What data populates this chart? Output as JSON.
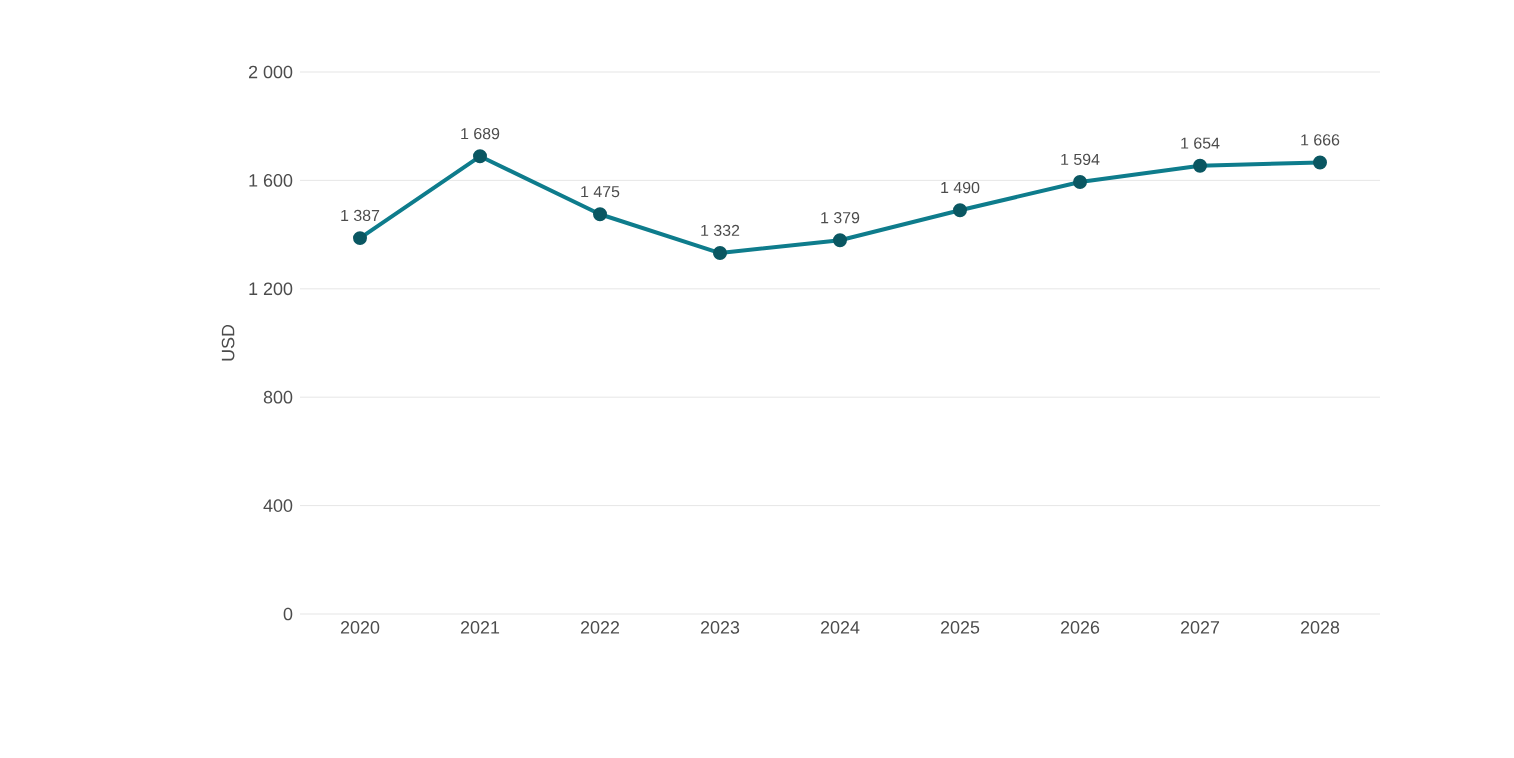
{
  "chart_data": {
    "type": "line",
    "ylabel": "USD",
    "categories": [
      "2020",
      "2021",
      "2022",
      "2023",
      "2024",
      "2025",
      "2026",
      "2027",
      "2028"
    ],
    "values": [
      1387,
      1689,
      1475,
      1332,
      1379,
      1490,
      1594,
      1654,
      1666
    ],
    "value_labels": [
      "1 387",
      "1 689",
      "1 475",
      "1 332",
      "1 379",
      "1 490",
      "1 594",
      "1 654",
      "1 666"
    ],
    "color": "#0e7c8c",
    "ylim": [
      0,
      2000
    ],
    "yticks": [
      {
        "value": 0,
        "label": "0"
      },
      {
        "value": 400,
        "label": "400"
      },
      {
        "value": 800,
        "label": "800"
      },
      {
        "value": 1200,
        "label": "1 200"
      },
      {
        "value": 1600,
        "label": "1 600"
      },
      {
        "value": 2000,
        "label": "2 000"
      }
    ],
    "grid": "y",
    "marker": "circle",
    "line_style": "solid"
  }
}
